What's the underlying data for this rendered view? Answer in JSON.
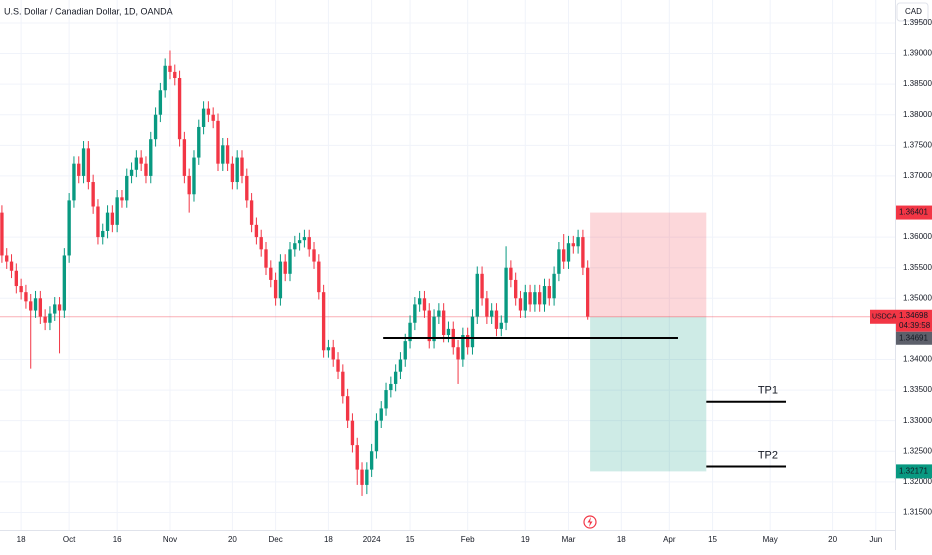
{
  "chart_data": {
    "type": "candlestick",
    "title": "U.S. Dollar / Canadian Dollar, 1D, OANDA",
    "currency_button": "CAD",
    "up_color": "#089981",
    "down_color": "#f23645",
    "grid": true,
    "ylim": [
      1.31213,
      1.39875
    ],
    "yticks": [
      {
        "value": 1.395,
        "label": "1.39500"
      },
      {
        "value": 1.39,
        "label": "1.39000"
      },
      {
        "value": 1.385,
        "label": "1.38500"
      },
      {
        "value": 1.38,
        "label": "1.38000"
      },
      {
        "value": 1.375,
        "label": "1.37500"
      },
      {
        "value": 1.37,
        "label": "1.37000"
      },
      {
        "value": 1.36,
        "label": "1.36000"
      },
      {
        "value": 1.355,
        "label": "1.35500"
      },
      {
        "value": 1.35,
        "label": "1.35000"
      },
      {
        "value": 1.34,
        "label": "1.34000"
      },
      {
        "value": 1.335,
        "label": "1.33500"
      },
      {
        "value": 1.33,
        "label": "1.33000"
      },
      {
        "value": 1.325,
        "label": "1.32500"
      },
      {
        "value": 1.32,
        "label": "1.32000"
      },
      {
        "value": 1.315,
        "label": "1.31500"
      }
    ],
    "xlim": [
      -0.4,
      186
    ],
    "xticks": [
      {
        "value": 4,
        "label": "18"
      },
      {
        "value": 14,
        "label": "Oct"
      },
      {
        "value": 24,
        "label": "16"
      },
      {
        "value": 35,
        "label": "Nov"
      },
      {
        "value": 48,
        "label": "20"
      },
      {
        "value": 57,
        "label": "Dec"
      },
      {
        "value": 68,
        "label": "18"
      },
      {
        "value": 77,
        "label": "2024"
      },
      {
        "value": 85,
        "label": "15"
      },
      {
        "value": 97,
        "label": "Feb"
      },
      {
        "value": 109,
        "label": "19"
      },
      {
        "value": 118,
        "label": "Mar"
      },
      {
        "value": 129,
        "label": "18"
      },
      {
        "value": 139,
        "label": "Apr"
      },
      {
        "value": 148,
        "label": "15"
      },
      {
        "value": 160,
        "label": "May"
      },
      {
        "value": 173,
        "label": "20"
      },
      {
        "value": 182,
        "label": "Jun"
      }
    ],
    "candles": [
      [
        1.364,
        1.3652,
        1.3558,
        1.357
      ],
      [
        1.357,
        1.3582,
        1.3548,
        1.356
      ],
      [
        1.356,
        1.3572,
        1.3533,
        1.3545
      ],
      [
        1.3545,
        1.3557,
        1.3508,
        1.352
      ],
      [
        1.352,
        1.3532,
        1.3498,
        1.351
      ],
      [
        1.351,
        1.3522,
        1.3483,
        1.3495
      ],
      [
        1.3495,
        1.3507,
        1.3385,
        1.348
      ],
      [
        1.348,
        1.3512,
        1.3468,
        1.35
      ],
      [
        1.35,
        1.3512,
        1.3458,
        1.347
      ],
      [
        1.347,
        1.3482,
        1.3448,
        1.346
      ],
      [
        1.346,
        1.3487,
        1.3448,
        1.3475
      ],
      [
        1.3475,
        1.3502,
        1.3463,
        1.349
      ],
      [
        1.349,
        1.3502,
        1.341,
        1.348
      ],
      [
        1.348,
        1.3582,
        1.3468,
        1.357
      ],
      [
        1.357,
        1.3672,
        1.3558,
        1.366
      ],
      [
        1.366,
        1.3732,
        1.3648,
        1.372
      ],
      [
        1.372,
        1.3732,
        1.3688,
        1.37
      ],
      [
        1.37,
        1.3757,
        1.3688,
        1.3745
      ],
      [
        1.3745,
        1.3757,
        1.3678,
        1.369
      ],
      [
        1.369,
        1.3702,
        1.3638,
        1.365
      ],
      [
        1.365,
        1.3662,
        1.3588,
        1.36
      ],
      [
        1.36,
        1.3622,
        1.3588,
        1.361
      ],
      [
        1.361,
        1.3652,
        1.3598,
        1.364
      ],
      [
        1.364,
        1.3652,
        1.3608,
        1.362
      ],
      [
        1.362,
        1.3677,
        1.3608,
        1.3665
      ],
      [
        1.3665,
        1.3677,
        1.3648,
        1.366
      ],
      [
        1.366,
        1.3712,
        1.3648,
        1.37
      ],
      [
        1.37,
        1.3722,
        1.3688,
        1.371
      ],
      [
        1.371,
        1.3742,
        1.3698,
        1.373
      ],
      [
        1.373,
        1.3742,
        1.3708,
        1.372
      ],
      [
        1.372,
        1.3732,
        1.3688,
        1.37
      ],
      [
        1.37,
        1.3772,
        1.3688,
        1.376
      ],
      [
        1.376,
        1.3812,
        1.3748,
        1.38
      ],
      [
        1.38,
        1.3852,
        1.3788,
        1.384
      ],
      [
        1.384,
        1.3892,
        1.3828,
        1.388
      ],
      [
        1.388,
        1.3905,
        1.3858,
        1.387
      ],
      [
        1.387,
        1.3882,
        1.3848,
        1.386
      ],
      [
        1.386,
        1.3872,
        1.3748,
        1.376
      ],
      [
        1.376,
        1.3772,
        1.3688,
        1.37
      ],
      [
        1.37,
        1.3712,
        1.364,
        1.367
      ],
      [
        1.367,
        1.3742,
        1.3658,
        1.373
      ],
      [
        1.373,
        1.3792,
        1.3718,
        1.378
      ],
      [
        1.378,
        1.3822,
        1.3768,
        1.381
      ],
      [
        1.381,
        1.3822,
        1.3788,
        1.38
      ],
      [
        1.38,
        1.3812,
        1.3778,
        1.379
      ],
      [
        1.379,
        1.3802,
        1.3708,
        1.372
      ],
      [
        1.372,
        1.3762,
        1.3708,
        1.375
      ],
      [
        1.375,
        1.3762,
        1.3708,
        1.372
      ],
      [
        1.372,
        1.3732,
        1.3678,
        1.369
      ],
      [
        1.369,
        1.3742,
        1.3678,
        1.373
      ],
      [
        1.373,
        1.3742,
        1.3688,
        1.37
      ],
      [
        1.37,
        1.3712,
        1.3648,
        1.366
      ],
      [
        1.366,
        1.3672,
        1.3608,
        1.362
      ],
      [
        1.362,
        1.3632,
        1.3588,
        1.36
      ],
      [
        1.36,
        1.3612,
        1.3568,
        1.358
      ],
      [
        1.358,
        1.3592,
        1.3538,
        1.355
      ],
      [
        1.355,
        1.3562,
        1.3518,
        1.353
      ],
      [
        1.353,
        1.3542,
        1.3488,
        1.35
      ],
      [
        1.35,
        1.3572,
        1.3488,
        1.356
      ],
      [
        1.356,
        1.3572,
        1.3528,
        1.354
      ],
      [
        1.354,
        1.3592,
        1.3528,
        1.358
      ],
      [
        1.358,
        1.3602,
        1.3568,
        1.359
      ],
      [
        1.359,
        1.3607,
        1.3578,
        1.3595
      ],
      [
        1.3595,
        1.3612,
        1.3583,
        1.36
      ],
      [
        1.36,
        1.3612,
        1.3568,
        1.358
      ],
      [
        1.358,
        1.3592,
        1.3548,
        1.356
      ],
      [
        1.356,
        1.3572,
        1.3498,
        1.351
      ],
      [
        1.351,
        1.3522,
        1.3403,
        1.3415
      ],
      [
        1.3415,
        1.3432,
        1.3403,
        1.342
      ],
      [
        1.342,
        1.3432,
        1.3388,
        1.34
      ],
      [
        1.34,
        1.3412,
        1.3368,
        1.338
      ],
      [
        1.338,
        1.3392,
        1.3328,
        1.334
      ],
      [
        1.334,
        1.3352,
        1.3288,
        1.33
      ],
      [
        1.33,
        1.3312,
        1.3248,
        1.326
      ],
      [
        1.326,
        1.3272,
        1.3195,
        1.322
      ],
      [
        1.322,
        1.3232,
        1.3177,
        1.3195
      ],
      [
        1.3195,
        1.3232,
        1.318,
        1.322
      ],
      [
        1.322,
        1.3262,
        1.3208,
        1.325
      ],
      [
        1.325,
        1.3312,
        1.3238,
        1.33
      ],
      [
        1.33,
        1.3332,
        1.3288,
        1.332
      ],
      [
        1.332,
        1.3362,
        1.3308,
        1.335
      ],
      [
        1.335,
        1.3372,
        1.3338,
        1.336
      ],
      [
        1.336,
        1.3392,
        1.3348,
        1.338
      ],
      [
        1.338,
        1.3412,
        1.3368,
        1.34
      ],
      [
        1.34,
        1.3442,
        1.3388,
        1.343
      ],
      [
        1.343,
        1.3472,
        1.3418,
        1.346
      ],
      [
        1.346,
        1.3502,
        1.3448,
        1.349
      ],
      [
        1.349,
        1.3512,
        1.3478,
        1.35
      ],
      [
        1.35,
        1.3512,
        1.3468,
        1.348
      ],
      [
        1.348,
        1.3492,
        1.3418,
        1.343
      ],
      [
        1.343,
        1.3482,
        1.3418,
        1.347
      ],
      [
        1.347,
        1.3492,
        1.3458,
        1.348
      ],
      [
        1.348,
        1.3492,
        1.3428,
        1.344
      ],
      [
        1.344,
        1.3462,
        1.3428,
        1.345
      ],
      [
        1.345,
        1.3462,
        1.3408,
        1.342
      ],
      [
        1.342,
        1.3432,
        1.336,
        1.34
      ],
      [
        1.34,
        1.3452,
        1.3388,
        1.344
      ],
      [
        1.344,
        1.3452,
        1.3408,
        1.342
      ],
      [
        1.342,
        1.3482,
        1.3408,
        1.347
      ],
      [
        1.347,
        1.3552,
        1.3458,
        1.354
      ],
      [
        1.354,
        1.3552,
        1.3488,
        1.35
      ],
      [
        1.35,
        1.3512,
        1.3458,
        1.347
      ],
      [
        1.347,
        1.3492,
        1.3458,
        1.348
      ],
      [
        1.348,
        1.3492,
        1.3438,
        1.345
      ],
      [
        1.345,
        1.3472,
        1.3438,
        1.346
      ],
      [
        1.346,
        1.3585,
        1.3448,
        1.355
      ],
      [
        1.355,
        1.3562,
        1.3518,
        1.353
      ],
      [
        1.353,
        1.3542,
        1.3488,
        1.35
      ],
      [
        1.35,
        1.3512,
        1.3468,
        1.348
      ],
      [
        1.348,
        1.3522,
        1.3468,
        1.351
      ],
      [
        1.351,
        1.3522,
        1.3478,
        1.349
      ],
      [
        1.349,
        1.3522,
        1.3478,
        1.351
      ],
      [
        1.351,
        1.3522,
        1.3478,
        1.349
      ],
      [
        1.349,
        1.3532,
        1.3478,
        1.352
      ],
      [
        1.352,
        1.3532,
        1.3488,
        1.35
      ],
      [
        1.35,
        1.3552,
        1.3488,
        1.354
      ],
      [
        1.354,
        1.3592,
        1.3528,
        1.358
      ],
      [
        1.358,
        1.3605,
        1.3548,
        1.356
      ],
      [
        1.356,
        1.3602,
        1.3548,
        1.359
      ],
      [
        1.359,
        1.3602,
        1.3573,
        1.3585
      ],
      [
        1.3585,
        1.3612,
        1.3573,
        1.36
      ],
      [
        1.36,
        1.3612,
        1.3538,
        1.355
      ],
      [
        1.355,
        1.3562,
        1.3465,
        1.347
      ]
    ],
    "position": {
      "entry": 1.34698,
      "stop": 1.36401,
      "target": 1.32171,
      "start": 122.5,
      "end": 146.7
    },
    "lines": [
      {
        "price": 1.3435,
        "from": 79.4,
        "to": 140.8
      },
      {
        "label": "TP1",
        "price": 1.3331,
        "from": 146.7,
        "to": 163.3
      },
      {
        "label": "TP2",
        "price": 1.3225,
        "from": 146.7,
        "to": 163.3
      }
    ],
    "symbol": "USDCAD",
    "countdown": "04:39:58",
    "bid": 1.34691
  }
}
